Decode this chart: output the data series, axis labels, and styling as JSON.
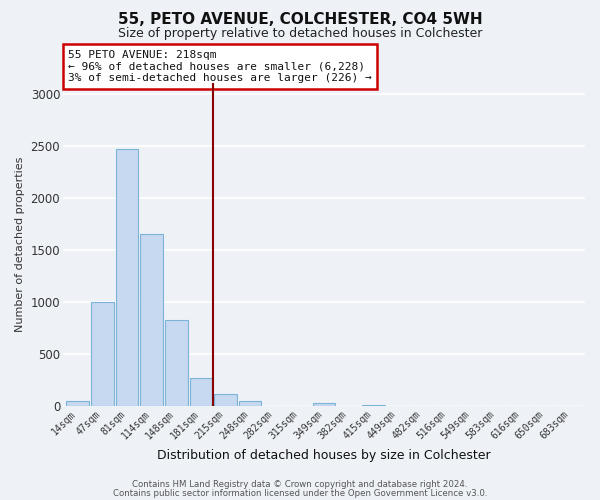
{
  "title": "55, PETO AVENUE, COLCHESTER, CO4 5WH",
  "subtitle": "Size of property relative to detached houses in Colchester",
  "xlabel": "Distribution of detached houses by size in Colchester",
  "ylabel": "Number of detached properties",
  "footnote1": "Contains HM Land Registry data © Crown copyright and database right 2024.",
  "footnote2": "Contains public sector information licensed under the Open Government Licence v3.0.",
  "bar_labels": [
    "14sqm",
    "47sqm",
    "81sqm",
    "114sqm",
    "148sqm",
    "181sqm",
    "215sqm",
    "248sqm",
    "282sqm",
    "315sqm",
    "349sqm",
    "382sqm",
    "415sqm",
    "449sqm",
    "482sqm",
    "516sqm",
    "549sqm",
    "583sqm",
    "616sqm",
    "650sqm",
    "683sqm"
  ],
  "bar_values": [
    55,
    1000,
    2470,
    1650,
    830,
    270,
    120,
    55,
    5,
    0,
    35,
    0,
    18,
    0,
    0,
    0,
    0,
    0,
    0,
    0,
    0
  ],
  "bar_color": "#c6d9f0",
  "bar_edgecolor": "#7cb4d8",
  "ylim": [
    0,
    3100
  ],
  "yticks": [
    0,
    500,
    1000,
    1500,
    2000,
    2500,
    3000
  ],
  "vline_x": 5.5,
  "vline_color": "#8b0000",
  "annotation_title": "55 PETO AVENUE: 218sqm",
  "annotation_line1": "← 96% of detached houses are smaller (6,228)",
  "annotation_line2": "3% of semi-detached houses are larger (226) →",
  "annotation_box_facecolor": "#ffffff",
  "annotation_box_edgecolor": "#cc0000",
  "background_color": "#eef2f7",
  "plot_bg_color": "#eef2f7",
  "grid_color": "#ffffff",
  "title_fontsize": 11,
  "subtitle_fontsize": 9
}
